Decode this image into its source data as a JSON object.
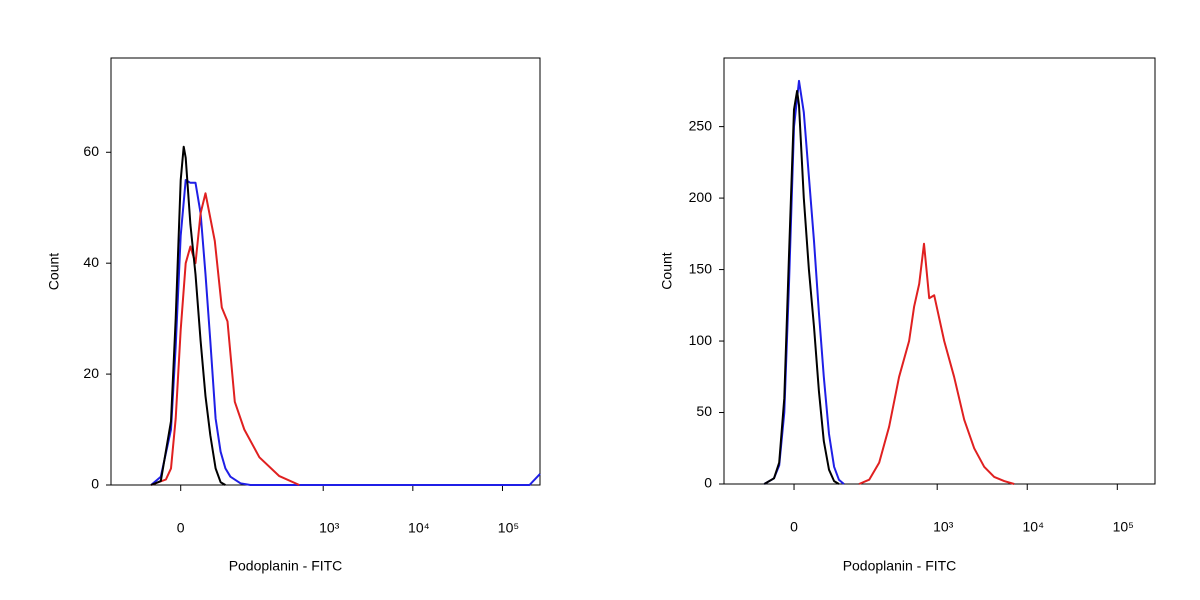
{
  "chart_data": [
    {
      "type": "line",
      "x_label": "Podoplanin - FITC",
      "y_label": "Count",
      "xscale": "biexponential",
      "xlim": [
        -150,
        262144
      ],
      "ylim": [
        0,
        77
      ],
      "xticks": [
        0,
        {
          "value": 1000,
          "label": "10³"
        },
        {
          "value": 10000,
          "label": "10⁴"
        },
        {
          "value": 100000,
          "label": "10⁵"
        }
      ],
      "yticks": [
        0,
        20,
        40,
        60
      ],
      "series": [
        {
          "color": "#1f1fe6",
          "x": [
            -43,
            -27.5,
            -13,
            -6.6,
            0,
            6.6,
            13,
            20,
            27.5,
            35,
            43,
            52.5,
            62.5,
            73,
            85,
            114,
            150,
            200000,
            262144
          ],
          "values": [
            0,
            1.5,
            10,
            25,
            45,
            55,
            54.5,
            54.5,
            49,
            38,
            26,
            12,
            6,
            3,
            1.5,
            0.3,
            0,
            0,
            2
          ]
        },
        {
          "color": "#e02020",
          "x": [
            -43,
            -20,
            -13,
            -6.6,
            0,
            6.6,
            13,
            20,
            27.5,
            35,
            51,
            65,
            78,
            97,
            127,
            191,
            322,
            540
          ],
          "values": [
            0,
            1,
            3,
            12,
            28,
            40,
            43,
            40,
            49,
            52.6,
            44,
            32,
            29.5,
            15,
            10,
            5,
            1.6,
            0
          ]
        },
        {
          "color": "#000000",
          "x": [
            -43,
            -27.5,
            -13,
            -6.6,
            0,
            4,
            6.6,
            13,
            20,
            27.5,
            35,
            43,
            52.5,
            62.5,
            73
          ],
          "values": [
            0,
            0.7,
            11.5,
            30,
            55,
            61,
            59,
            47,
            38,
            26,
            16,
            9,
            3,
            0.5,
            0
          ]
        }
      ]
    },
    {
      "type": "line",
      "x_label": "Podoplanin - FITC",
      "y_label": "Count",
      "xscale": "biexponential",
      "xlim": [
        -150,
        262144
      ],
      "ylim": [
        0,
        298
      ],
      "xticks": [
        0,
        {
          "value": 1000,
          "label": "10³"
        },
        {
          "value": 10000,
          "label": "10⁴"
        },
        {
          "value": 100000,
          "label": "10⁵"
        }
      ],
      "yticks": [
        0,
        50,
        100,
        150,
        200,
        250
      ],
      "series": [
        {
          "color": "#e02020",
          "x": [
            131,
            172,
            224,
            290,
            376,
            487,
            553,
            630,
            714,
            760,
            814,
            925,
            1195,
            1543,
            1993,
            2575,
            3325,
            4295,
            5547,
            7165
          ],
          "values": [
            0,
            3,
            15,
            40,
            75,
            100,
            124,
            140,
            168,
            150,
            130,
            132,
            100,
            75,
            45,
            25,
            12,
            5,
            2,
            0
          ]
        },
        {
          "color": "#1f1fe6",
          "x": [
            -43,
            -27.5,
            -20,
            -13,
            -6.6,
            0,
            6.6,
            13,
            20,
            27.5,
            35,
            43,
            52.5,
            62.5,
            73,
            85
          ],
          "values": [
            0,
            4,
            13,
            50,
            140,
            250,
            282,
            260,
            215,
            170,
            120,
            75,
            35,
            12,
            3,
            0
          ]
        },
        {
          "color": "#000000",
          "x": [
            -43,
            -27.5,
            -20,
            -13,
            -6.6,
            0,
            4,
            6.6,
            13,
            20,
            27.5,
            35,
            43,
            52.5,
            62.5,
            73
          ],
          "values": [
            0,
            4,
            15,
            60,
            160,
            262,
            275,
            265,
            200,
            150,
            110,
            65,
            30,
            10,
            2,
            0
          ]
        }
      ]
    }
  ]
}
